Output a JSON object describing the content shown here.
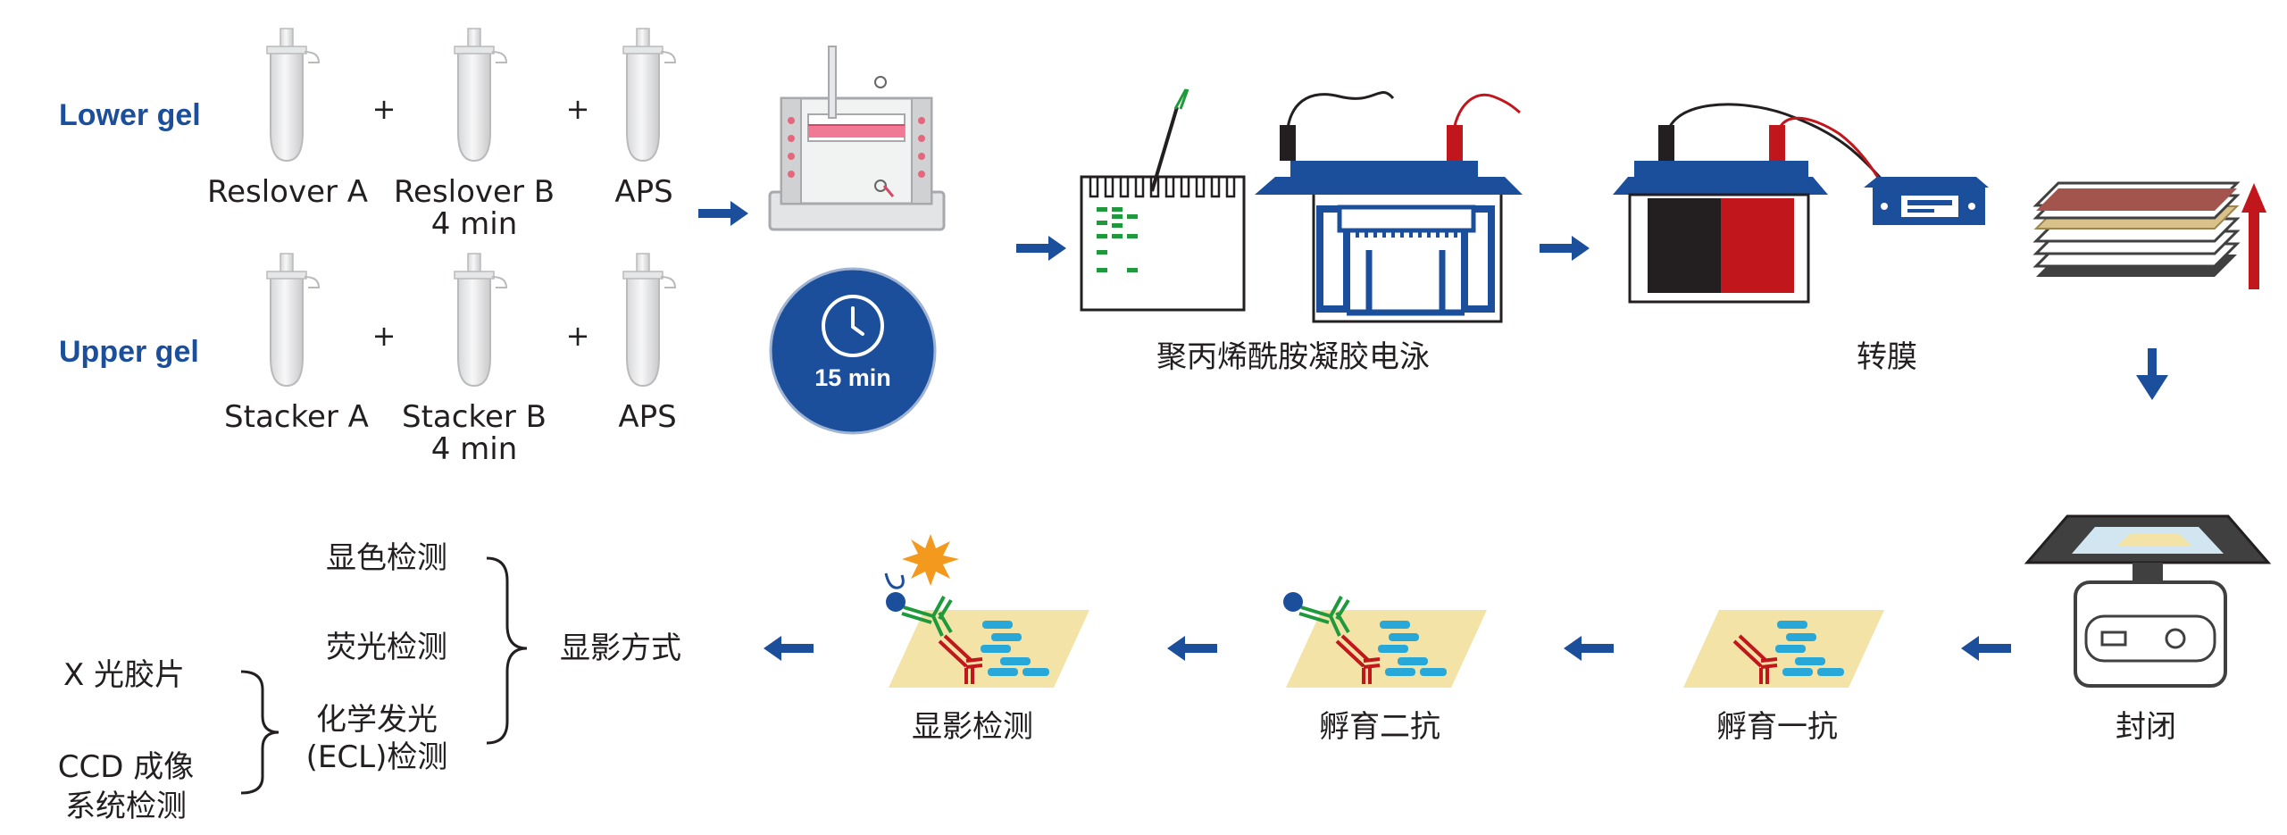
{
  "lower_gel": {
    "title": "Lower gel",
    "items": [
      "Reslover A",
      "Reslover B",
      "APS"
    ],
    "time": "4 min"
  },
  "upper_gel": {
    "title": "Upper gel",
    "items": [
      "Stacker A",
      "Stacker B",
      "APS"
    ],
    "time": "4 min"
  },
  "plus": "+",
  "timer": "15 min",
  "steps": {
    "electrophoresis": "聚丙烯酰胺凝胶电泳",
    "transfer": "转膜",
    "blocking": "封闭",
    "primary_ab": "孵育一抗",
    "secondary_ab": "孵育二抗",
    "detection": "显影检测",
    "methods": "显影方式"
  },
  "methods": {
    "chromogenic": "显色检测",
    "fluorescent": "荧光检测",
    "ecl_line1": "化学发光",
    "ecl_line2": "(ECL)检测",
    "xray": "X 光胶片",
    "ccd_line1": "CCD 成像",
    "ccd_line2": "系统检测"
  },
  "colors": {
    "blue": "#1b4f9c",
    "red": "#c1161c",
    "green": "#1e9a3c",
    "membrane": "#f3e3a6",
    "cyan": "#28a8d8",
    "star": "#f39a1e"
  }
}
